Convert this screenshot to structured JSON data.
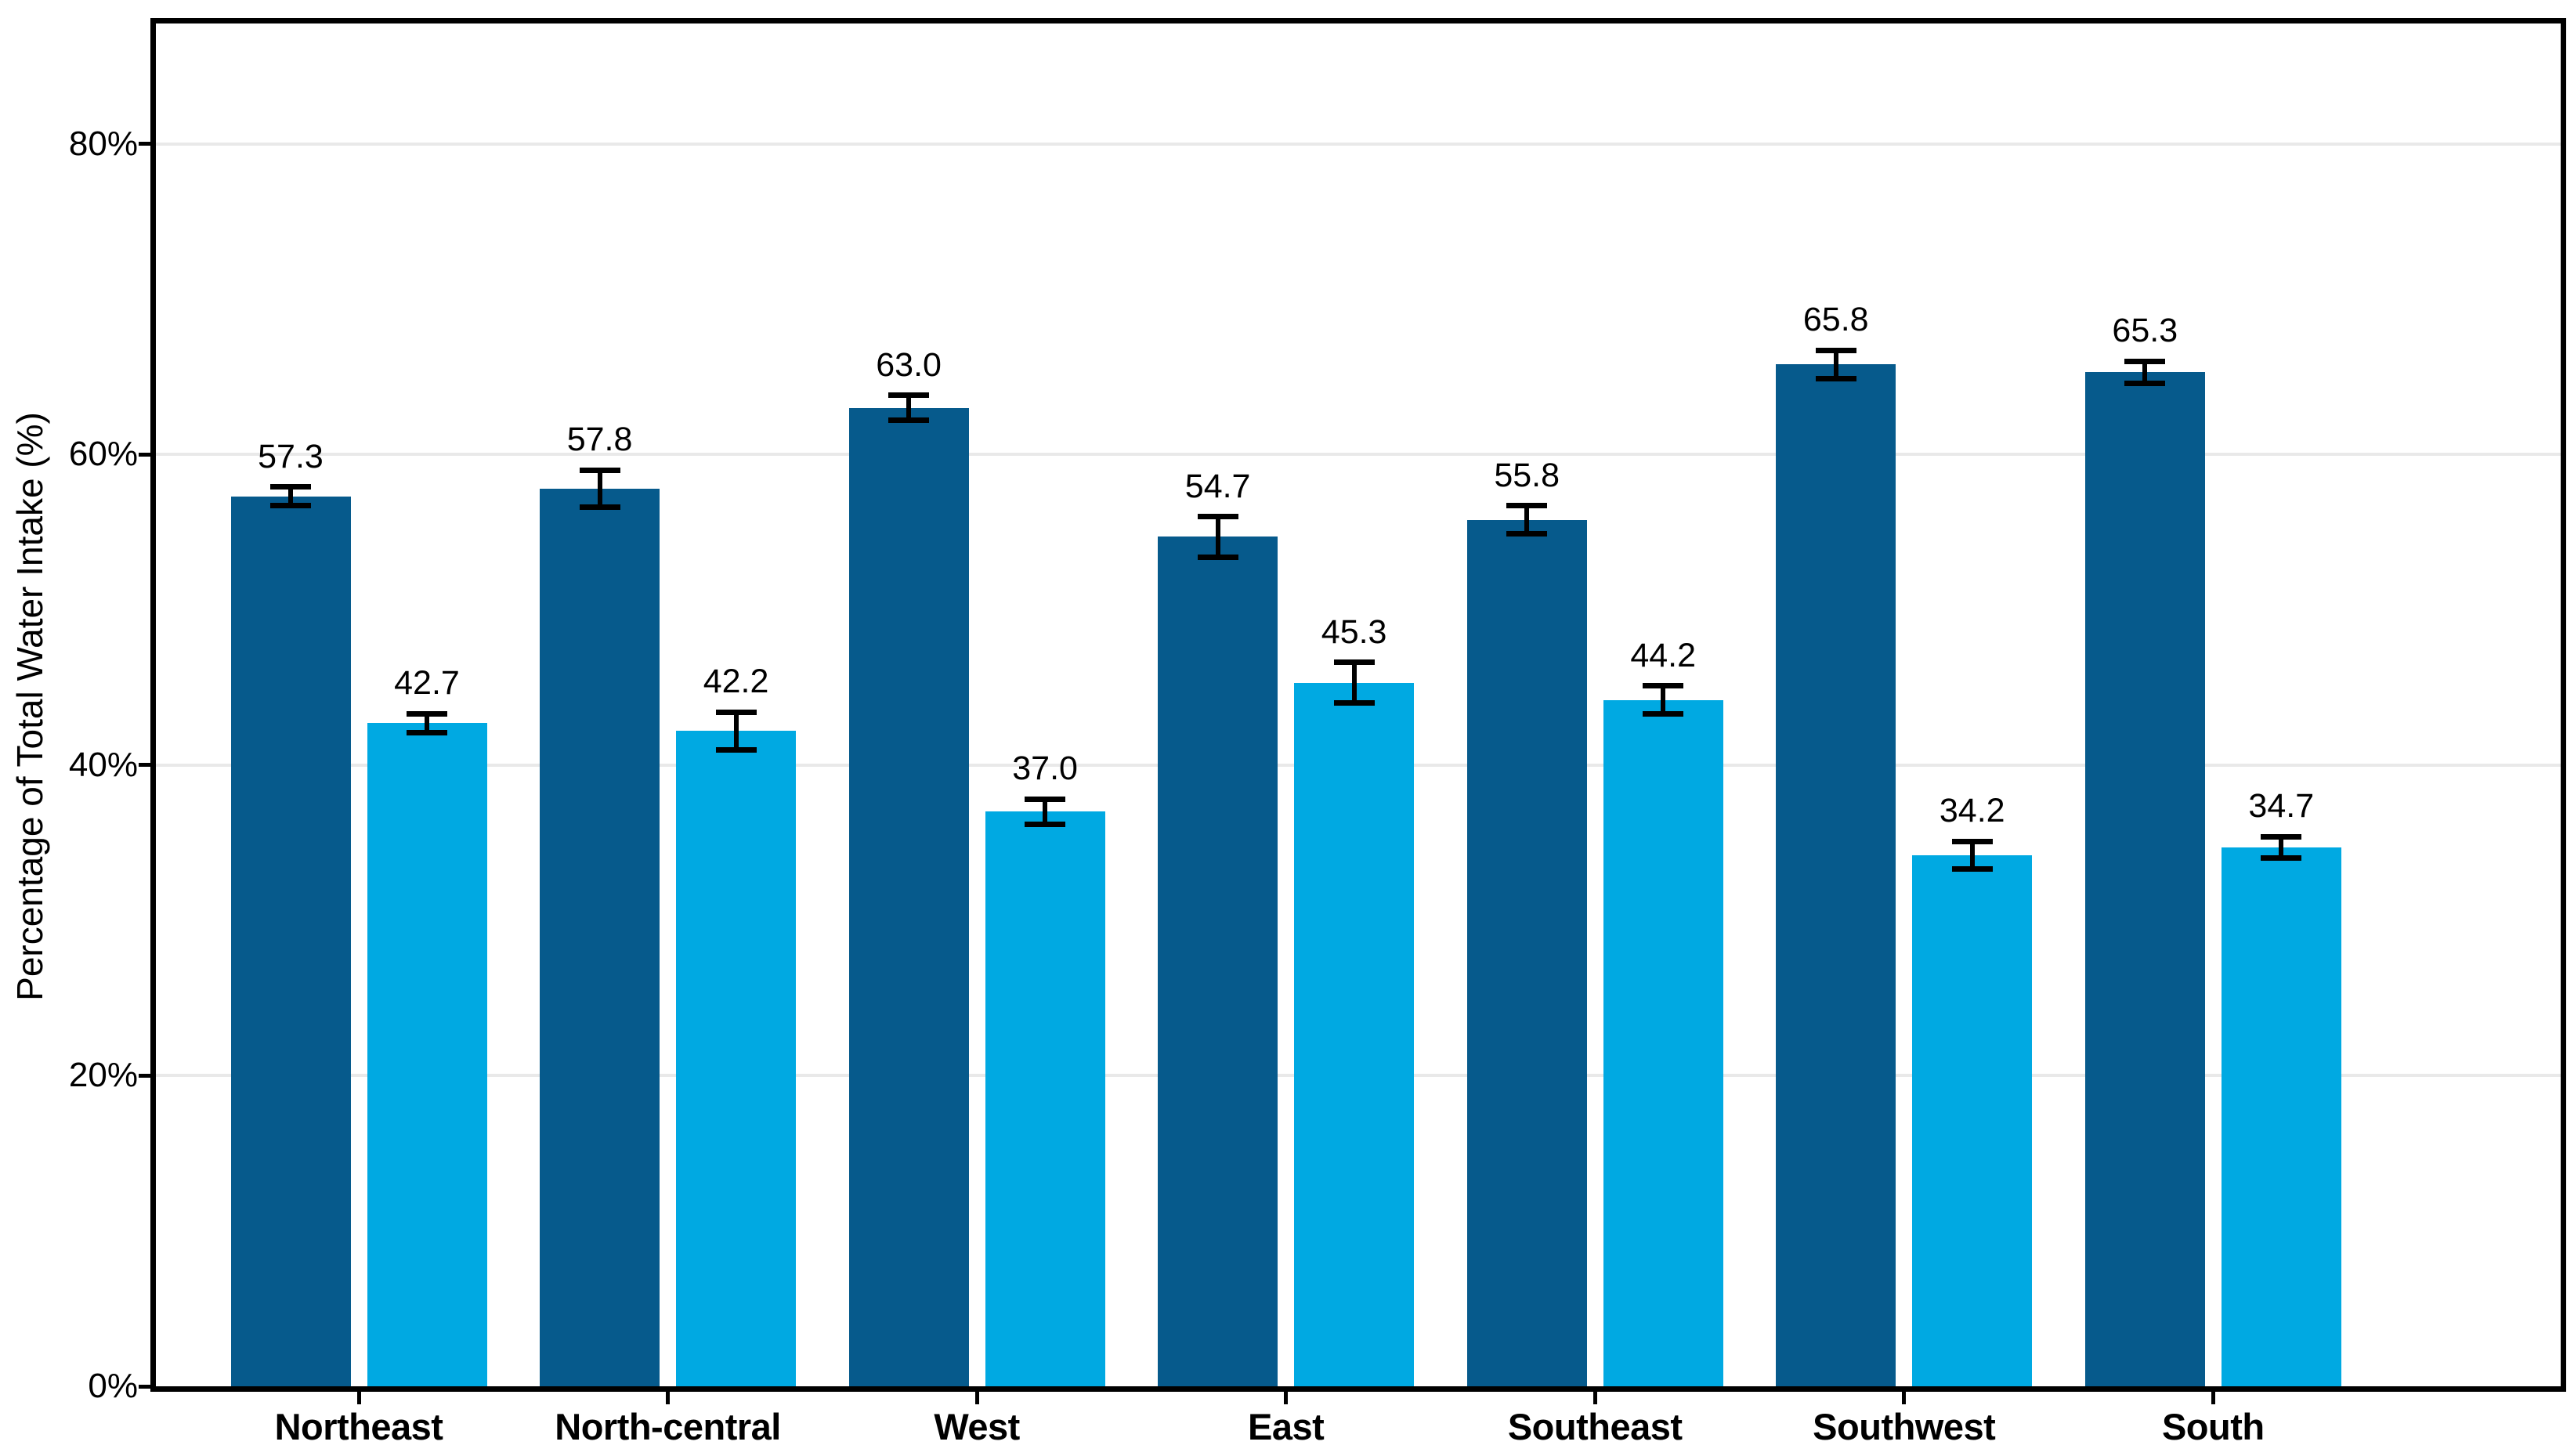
{
  "figure": {
    "background": "#ffffff"
  },
  "chart_data": {
    "type": "bar",
    "title": "",
    "xlabel": "",
    "ylabel": "Percentage of Total Water Intake (%)",
    "categories": [
      "Northeast",
      "North-central",
      "West",
      "East",
      "Southeast",
      "Southwest",
      "South"
    ],
    "series": [
      {
        "name": "dark-blue-series",
        "color": "#065A8C",
        "values": [
          57.3,
          57.8,
          63.0,
          54.7,
          55.8,
          65.8,
          65.3
        ],
        "labels": [
          "57.3",
          "57.8",
          "63.0",
          "54.7",
          "55.8",
          "65.8",
          "65.3"
        ],
        "errors": [
          0.6,
          1.2,
          0.8,
          1.3,
          0.9,
          0.9,
          0.7
        ]
      },
      {
        "name": "light-blue-series",
        "color": "#00A9E2",
        "values": [
          42.7,
          42.2,
          37.0,
          45.3,
          44.2,
          34.2,
          34.7
        ],
        "labels": [
          "42.7",
          "42.2",
          "37.0",
          "45.3",
          "44.2",
          "34.2",
          "34.7"
        ],
        "errors": [
          0.6,
          1.2,
          0.8,
          1.3,
          0.9,
          0.9,
          0.7
        ]
      }
    ],
    "y_ticks": [
      {
        "value": 0,
        "label": "0%"
      },
      {
        "value": 20,
        "label": "20%"
      },
      {
        "value": 40,
        "label": "40%"
      },
      {
        "value": 60,
        "label": "60%"
      },
      {
        "value": 80,
        "label": "80%"
      }
    ],
    "ylim": [
      0,
      87.75
    ],
    "grid": "horizontal",
    "gridline_color": "#E9E9E9",
    "axis_color": "#000000",
    "error_bar_color": "#000000",
    "legend": "none"
  }
}
